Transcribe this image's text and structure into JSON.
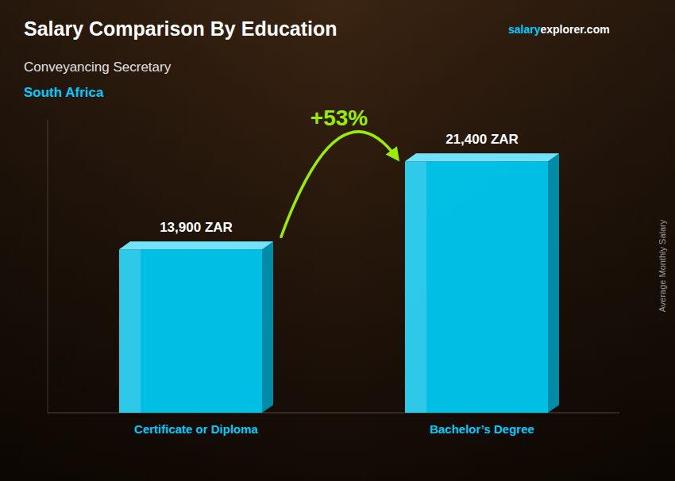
{
  "chart_data": {
    "type": "bar",
    "title": "Salary Comparison By Education",
    "subtitle": "Conveyancing Secretary",
    "annotations": [
      "South Africa",
      "salary",
      "explorer.com",
      "+53%"
    ],
    "ylabel": "Average Monthly Salary",
    "categories": [
      "Certificate or Diploma",
      "Bachelor’s Degree"
    ],
    "values": [
      13900,
      21400
    ],
    "value_labels": [
      "13,900 ZAR",
      "21,400 ZAR"
    ],
    "color": "#00c8f0",
    "ylim": [
      0,
      25000
    ],
    "grid": false,
    "tick_labels": false,
    "data_labels": true
  }
}
